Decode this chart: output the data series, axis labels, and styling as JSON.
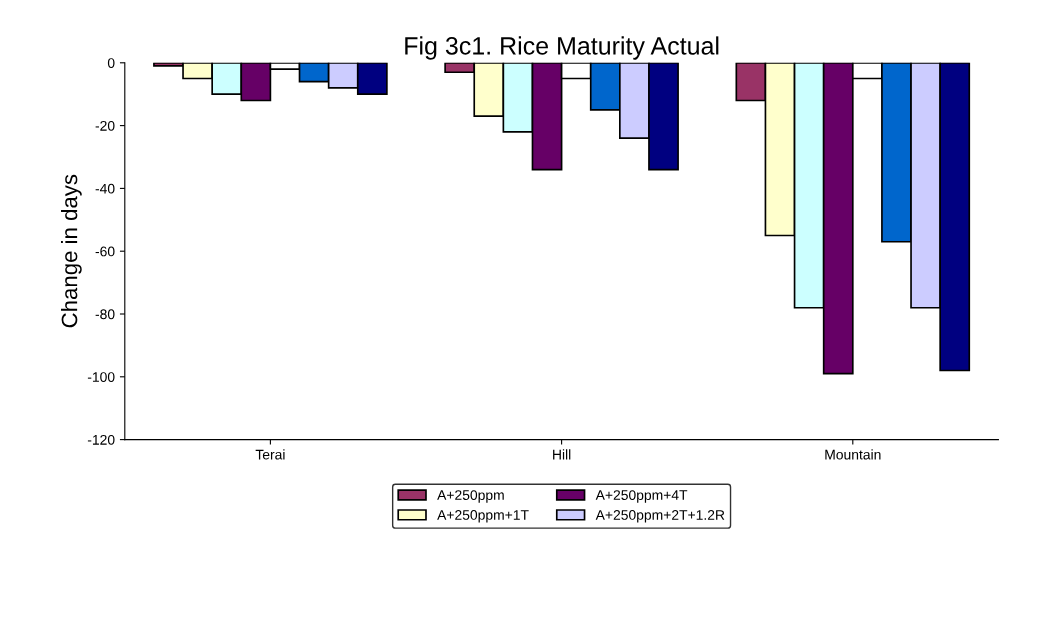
{
  "chart_data": {
    "type": "bar",
    "title": "Fig 3c1. Rice Maturity Actual",
    "ylabel": "Change in days",
    "categories": [
      "Terai",
      "Hill",
      "Mountain"
    ],
    "ylim": [
      -120,
      0
    ],
    "yticks": [
      0,
      -20,
      -40,
      -60,
      -80,
      -100,
      -120
    ],
    "grid": false,
    "legend": "bottom",
    "series": [
      {
        "name": "A+250ppm",
        "color": "#993366",
        "values": [
          -1,
          -3,
          -12
        ]
      },
      {
        "name": "A+250ppm+1T",
        "color": "#ffffcc",
        "values": [
          -5,
          -17,
          -55
        ]
      },
      {
        "color": "#ccffff",
        "values": [
          -10,
          -22,
          -78
        ]
      },
      {
        "name": "A+250ppm+4T",
        "color": "#660066",
        "values": [
          -12,
          -34,
          -99
        ]
      },
      {
        "color": "#ffffff",
        "values": [
          -2,
          -5,
          -5
        ]
      },
      {
        "color": "#0066cc",
        "values": [
          -6,
          -15,
          -57
        ]
      },
      {
        "name": "A+250ppm+2T+1.2R",
        "color": "#ccccff",
        "values": [
          -8,
          -24,
          -78
        ]
      },
      {
        "color": "#000080",
        "values": [
          -10,
          -34,
          -98
        ]
      }
    ]
  }
}
